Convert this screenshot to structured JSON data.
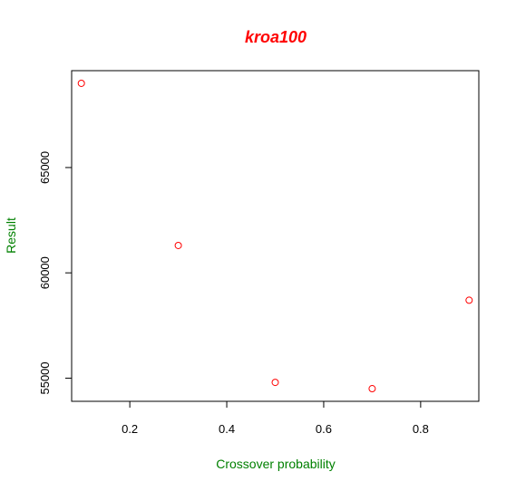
{
  "chart_data": {
    "type": "scatter",
    "title": "kroa100",
    "xlabel": "Crossover probability",
    "ylabel": "Result",
    "x": [
      0.1,
      0.3,
      0.5,
      0.7,
      0.9
    ],
    "y": [
      69000,
      61300,
      54800,
      54500,
      58700
    ],
    "xlim": [
      0.08,
      0.92
    ],
    "ylim": [
      53900,
      69600
    ],
    "xticks": [
      0.2,
      0.4,
      0.6,
      0.8
    ],
    "xtick_labels": [
      "0.2",
      "0.4",
      "0.6",
      "0.8"
    ],
    "yticks": [
      55000,
      60000,
      65000
    ],
    "ytick_labels": [
      "55000",
      "60000",
      "65000"
    ],
    "grid": false,
    "colors": {
      "title": "#ff0000",
      "axis_labels": "#008000",
      "points": "#ff0000",
      "axes": "#000000"
    }
  }
}
